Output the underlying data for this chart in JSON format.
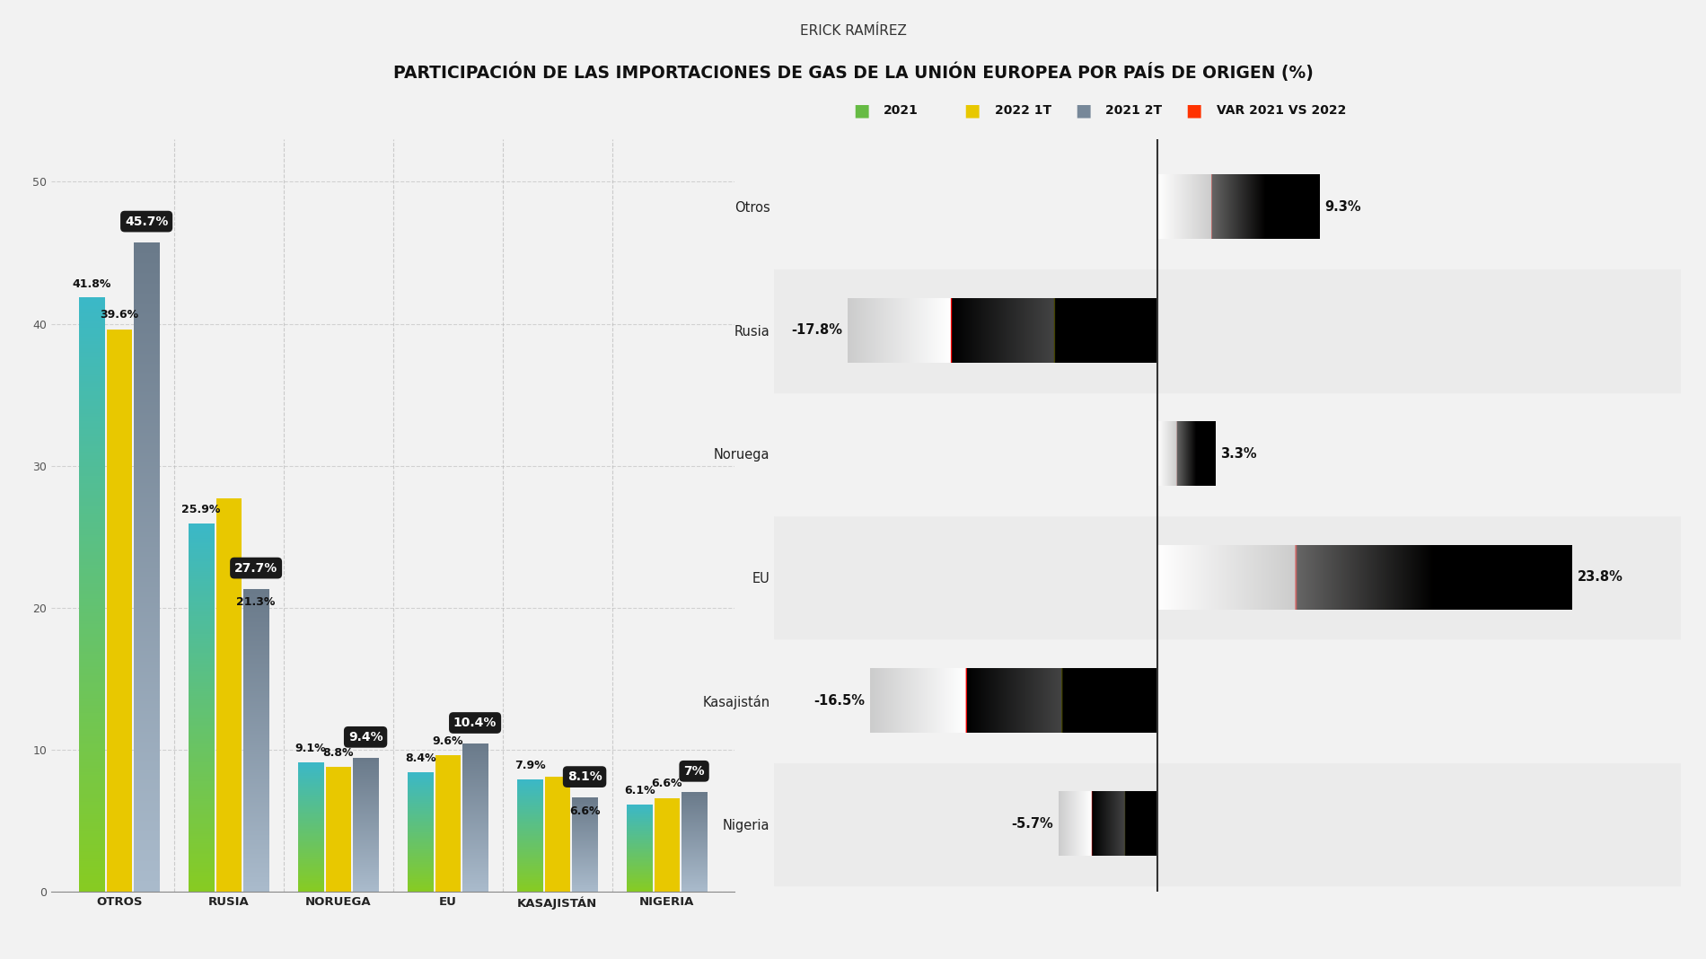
{
  "title": "PARTICIPACIÓN DE LAS IMPORTACIONES DE GAS DE LA UNIÓN EUROPEA POR PAÍS DE ORIGEN (%)",
  "author": "ERICK RAMÍREZ",
  "bar_categories": [
    "OTROS",
    "RUSIA",
    "NORUEGA",
    "EU",
    "KASAJISTÁN",
    "NIGERIA"
  ],
  "bar_2021": [
    41.8,
    25.9,
    9.1,
    8.4,
    7.9,
    6.1
  ],
  "bar_2022_1T": [
    39.6,
    27.7,
    8.8,
    9.6,
    8.1,
    6.6
  ],
  "bar_2021_2T": [
    45.7,
    21.3,
    9.4,
    10.4,
    6.6,
    7.0
  ],
  "bar_circle_labels": [
    "45.7%",
    "27.7%",
    "9.4%",
    "10.4%",
    "8.1%",
    "7%"
  ],
  "bar_value_labels_2021": [
    "41.8%",
    "25.9%",
    "9.1%",
    "8.4%",
    "7.9%",
    "6.1%"
  ],
  "bar_value_labels_2022_1T": [
    "39.6%",
    "",
    "8.8%",
    "9.6%",
    "",
    "6.6%"
  ],
  "bar_value_labels_2021_2T": [
    "",
    "21.3%",
    "",
    "",
    "6.6%",
    ""
  ],
  "ylim": [
    0,
    53
  ],
  "yticks": [
    0,
    10,
    20,
    30,
    40,
    50
  ],
  "horiz_categories": [
    "Otros",
    "Rusia",
    "Noruega",
    "EU",
    "Kasajistán",
    "Nigeria"
  ],
  "horiz_values": [
    9.3,
    -17.8,
    3.3,
    23.8,
    -16.5,
    -5.7
  ],
  "horiz_labels": [
    "9.3%",
    "-17.8%",
    "3.3%",
    "23.8%",
    "-16.5%",
    "-5.7%"
  ],
  "horiz_xlim": [
    -22,
    30
  ],
  "color_2021_top": "#3BB8C8",
  "color_2021_bottom": "#88CC22",
  "color_2022_1T": "#E8C800",
  "color_2T_top": "#6A7A8A",
  "color_2T_bottom": "#AABBCC",
  "color_horiz_pos_left": "#FF6600",
  "color_horiz_pos_right": "#CC0000",
  "color_horiz_neg_left": "#CC0000",
  "color_horiz_neg_right": "#FF4400",
  "color_circle": "#1A1A1A",
  "bg_color": "#F2F2F2",
  "legend_colors_2021": "#66BB44",
  "legend_colors_2022": "#E8C800",
  "legend_colors_2T": "#778899",
  "legend_colors_var": "#FF3300"
}
